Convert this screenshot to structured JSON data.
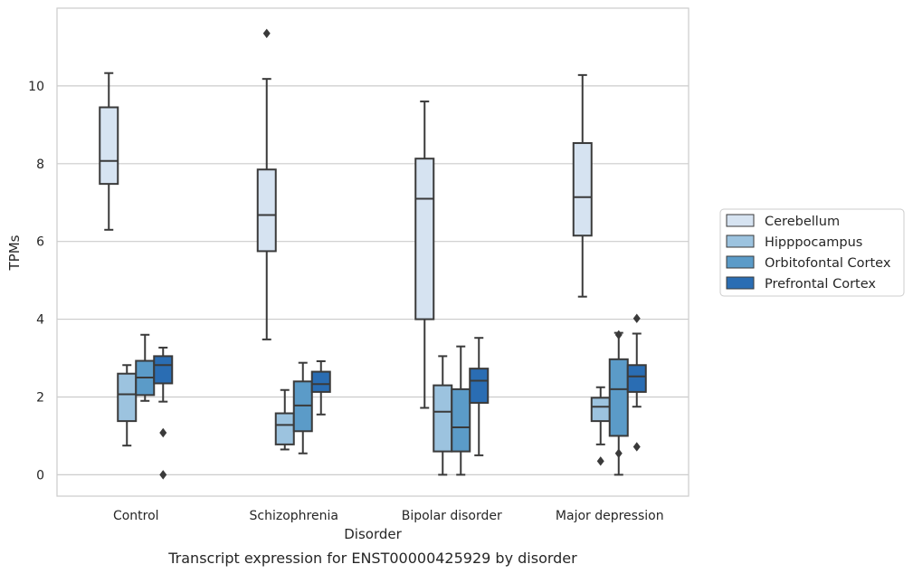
{
  "chart_data": {
    "type": "box",
    "title": "",
    "caption": "Transcript expression for ENST00000425929 by disorder",
    "xlabel": "Disorder",
    "ylabel": "TPMs",
    "ylim": [
      -0.55,
      12.0
    ],
    "yticks": [
      "0",
      "2",
      "4",
      "6",
      "8",
      "10"
    ],
    "ytick_values": [
      0,
      2,
      4,
      6,
      8,
      10
    ],
    "grid": "horizontal",
    "legend_position": "right",
    "categories": [
      "Control",
      "Schizophrenia",
      "Bipolar disorder",
      "Major depression"
    ],
    "series": [
      {
        "name": "Cerebellum",
        "color": "#d6e3f1",
        "boxes": [
          {
            "whislo": 6.3,
            "q1": 7.48,
            "med": 8.07,
            "q3": 9.45,
            "whishi": 10.33,
            "fliers": []
          },
          {
            "whislo": 3.48,
            "q1": 5.75,
            "med": 6.68,
            "q3": 7.85,
            "whishi": 10.18,
            "fliers": [
              11.35
            ]
          },
          {
            "whislo": 1.72,
            "q1": 4.0,
            "med": 7.1,
            "q3": 8.13,
            "whishi": 9.6,
            "fliers": []
          },
          {
            "whislo": 4.58,
            "q1": 6.15,
            "med": 7.14,
            "q3": 8.53,
            "whishi": 10.28,
            "fliers": []
          }
        ]
      },
      {
        "name": "Hipppocampus",
        "color": "#9cc3df",
        "boxes": [
          {
            "whislo": 0.75,
            "q1": 1.38,
            "med": 2.07,
            "q3": 2.6,
            "whishi": 2.82,
            "fliers": []
          },
          {
            "whislo": 0.65,
            "q1": 0.78,
            "med": 1.28,
            "q3": 1.58,
            "whishi": 2.18,
            "fliers": []
          },
          {
            "whislo": 0.0,
            "q1": 0.6,
            "med": 1.62,
            "q3": 2.3,
            "whishi": 3.05,
            "fliers": []
          },
          {
            "whislo": 0.78,
            "q1": 1.38,
            "med": 1.75,
            "q3": 1.98,
            "whishi": 2.25,
            "fliers": [
              0.35
            ]
          }
        ]
      },
      {
        "name": "Orbitofontal Cortex",
        "color": "#5b9bc8",
        "boxes": [
          {
            "whislo": 1.9,
            "q1": 2.05,
            "med": 2.5,
            "q3": 2.93,
            "whishi": 3.6,
            "fliers": []
          },
          {
            "whislo": 0.55,
            "q1": 1.12,
            "med": 1.78,
            "q3": 2.4,
            "whishi": 2.88,
            "fliers": []
          },
          {
            "whislo": 0.0,
            "q1": 0.6,
            "med": 1.22,
            "q3": 2.2,
            "whishi": 3.3,
            "fliers": []
          },
          {
            "whislo": 0.0,
            "q1": 1.0,
            "med": 2.2,
            "q3": 2.97,
            "whishi": 3.65,
            "fliers": [
              3.6,
              0.55
            ]
          }
        ]
      },
      {
        "name": "Prefrontal Cortex",
        "color": "#2a6db3",
        "boxes": [
          {
            "whislo": 1.88,
            "q1": 2.35,
            "med": 2.82,
            "q3": 3.05,
            "whishi": 3.27,
            "fliers": [
              1.08,
              0.0
            ]
          },
          {
            "whislo": 1.55,
            "q1": 2.13,
            "med": 2.33,
            "q3": 2.65,
            "whishi": 2.92,
            "fliers": []
          },
          {
            "whislo": 0.5,
            "q1": 1.85,
            "med": 2.42,
            "q3": 2.73,
            "whishi": 3.52,
            "fliers": []
          },
          {
            "whislo": 1.75,
            "q1": 2.13,
            "med": 2.53,
            "q3": 2.82,
            "whishi": 3.63,
            "fliers": [
              4.02,
              0.72
            ]
          }
        ]
      }
    ]
  }
}
